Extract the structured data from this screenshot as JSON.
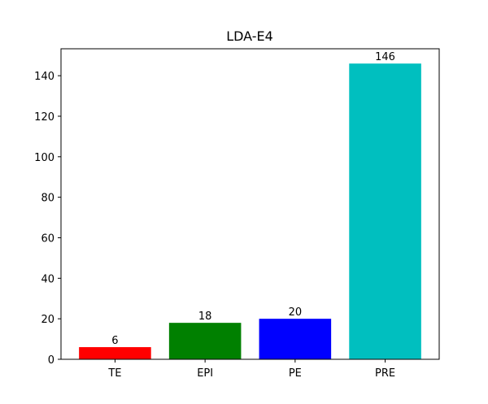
{
  "chart_data": {
    "type": "bar",
    "title": "LDA-E4",
    "xlabel": "",
    "ylabel": "",
    "categories": [
      "TE",
      "EPI",
      "PE",
      "PRE"
    ],
    "values": [
      6,
      18,
      20,
      146
    ],
    "colors": [
      "#ff0000",
      "#008000",
      "#0000ff",
      "#00bfbf"
    ],
    "data_labels": [
      "6",
      "18",
      "20",
      "146"
    ],
    "ylim": [
      0,
      153.3
    ],
    "yticks": [
      0,
      20,
      40,
      60,
      80,
      100,
      120,
      140
    ],
    "ytick_labels": [
      "0",
      "20",
      "40",
      "60",
      "80",
      "100",
      "120",
      "140"
    ],
    "grid": false,
    "legend": "none"
  }
}
